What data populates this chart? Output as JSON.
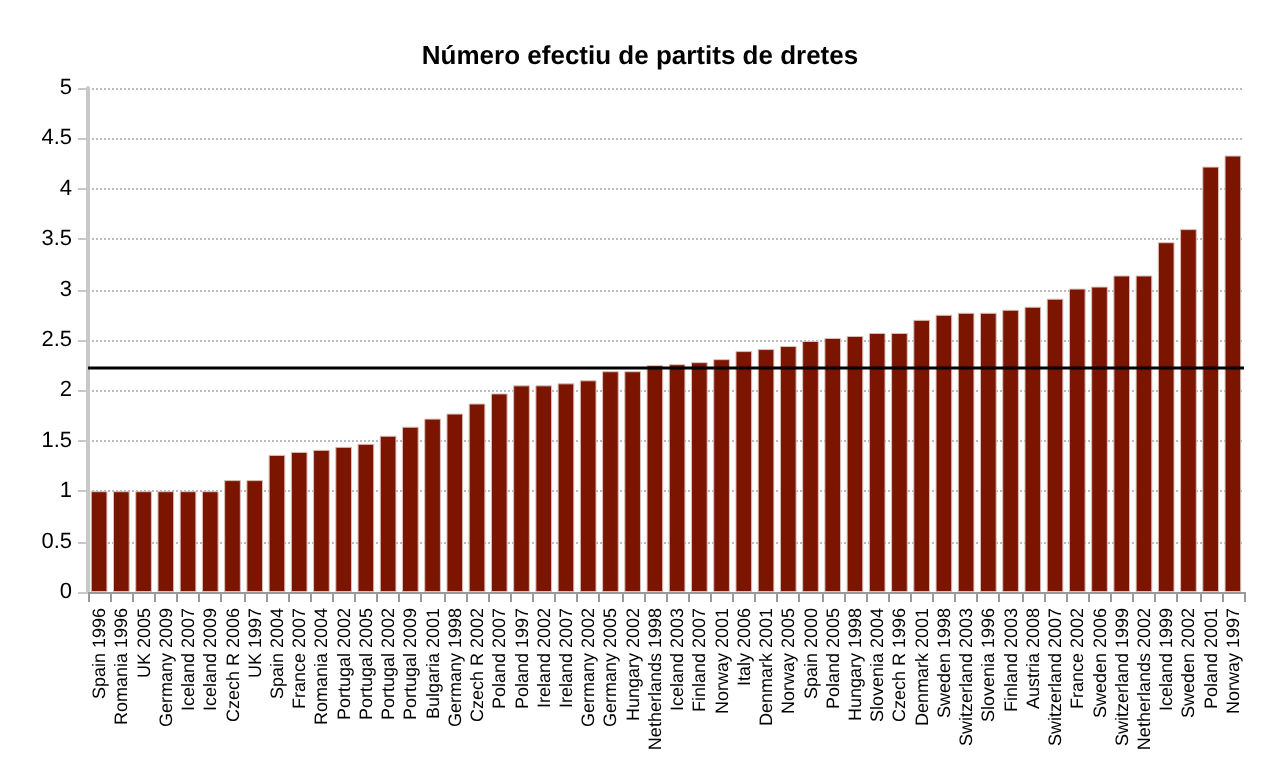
{
  "chart_data": {
    "type": "bar",
    "title": "Número efectiu de partits de dretes",
    "categories": [
      "Spain 1996",
      "Romania 1996",
      "UK 2005",
      "Germany 2009",
      "Iceland 2007",
      "Iceland 2009",
      "Czech R 2006",
      "UK 1997",
      "Spain 2004",
      "France 2007",
      "Romania 2004",
      "Portugal 2002",
      "Portugal 2005",
      "Portugal 2002",
      "Portugal 2009",
      "Bulgaria 2001",
      "Germany 1998",
      "Czech R 2002",
      "Poland 2007",
      "Poland 1997",
      "Ireland 2002",
      "Ireland 2007",
      "Germany 2002",
      "Germany 2005",
      "Hungary 2002",
      "Netherlands 1998",
      "Iceland 2003",
      "Finland 2007",
      "Norway 2001",
      "Italy 2006",
      "Denmark 2001",
      "Norway 2005",
      "Spain 2000",
      "Poland 2005",
      "Hungary 1998",
      "Slovenia 2004",
      "Czech R 1996",
      "Denmark 2001",
      "Sweden 1998",
      "Switzerland 2003",
      "Slovenia 1996",
      "Finland 2003",
      "Austria 2008",
      "Switzerland 2007",
      "France 2002",
      "Sweden 2006",
      "Switzerland 1999",
      "Netherlands 2002",
      "Iceland 1999",
      "Sweden 2002",
      "Poland 2001",
      "Norway 1997"
    ],
    "values": [
      1,
      1,
      1,
      1,
      1,
      1,
      1.11,
      1.11,
      1.36,
      1.39,
      1.41,
      1.44,
      1.47,
      1.55,
      1.64,
      1.72,
      1.77,
      1.87,
      1.97,
      2.05,
      2.05,
      2.07,
      2.1,
      2.19,
      2.19,
      2.25,
      2.26,
      2.28,
      2.31,
      2.39,
      2.41,
      2.44,
      2.49,
      2.52,
      2.54,
      2.57,
      2.57,
      2.7,
      2.75,
      2.77,
      2.77,
      2.8,
      2.83,
      2.91,
      3.01,
      3.03,
      3.14,
      3.14,
      3.47,
      3.6,
      4.22,
      4.33
    ],
    "color": "#7b1500",
    "ylim": [
      0,
      5
    ],
    "yticks": [
      0,
      0.5,
      1,
      1.5,
      2,
      2.5,
      3,
      3.5,
      4,
      4.5,
      5
    ],
    "grid": "y",
    "ref_lines": [
      {
        "axis": "y",
        "value": 2.22,
        "color": "#000000"
      }
    ]
  }
}
